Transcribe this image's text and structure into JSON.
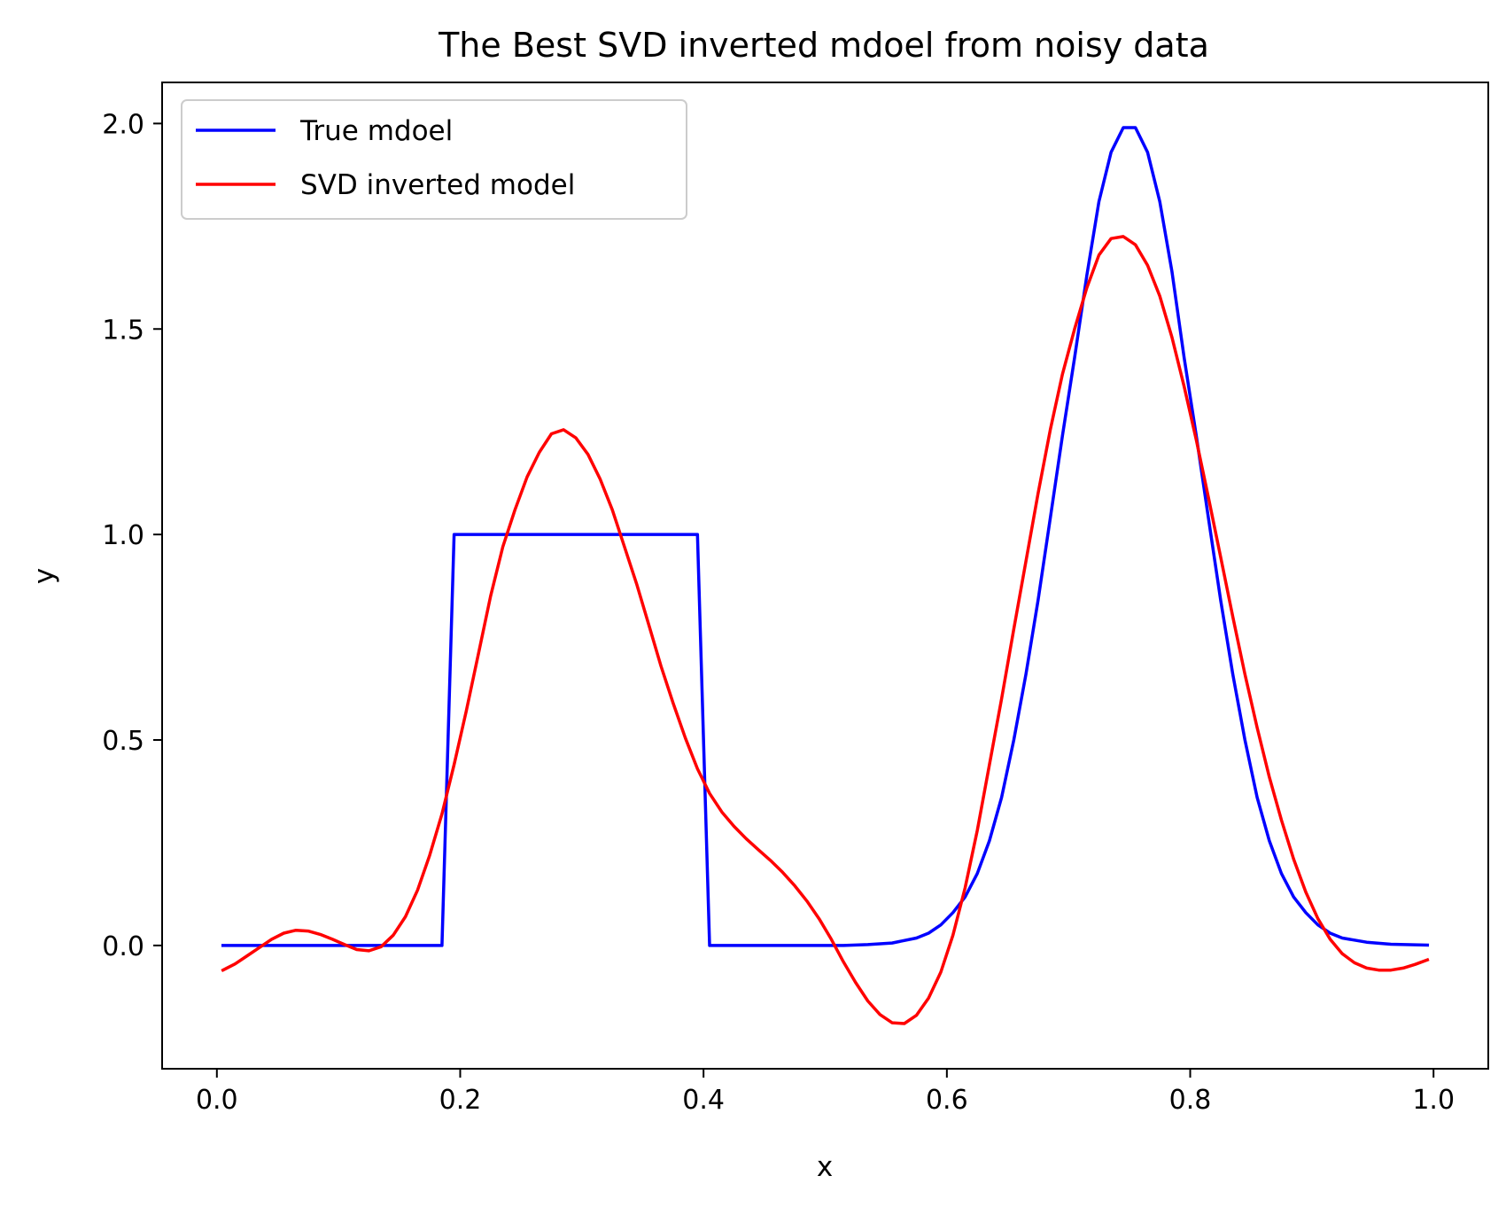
{
  "chart_data": {
    "type": "line",
    "title": "The Best SVD inverted mdoel from noisy data",
    "xlabel": "x",
    "ylabel": "y",
    "xlim": [
      -0.045,
      1.045
    ],
    "ylim": [
      -0.3,
      2.1
    ],
    "xticks": [
      0.0,
      0.2,
      0.4,
      0.6,
      0.8,
      1.0
    ],
    "xtick_labels": [
      "0.0",
      "0.2",
      "0.4",
      "0.6",
      "0.8",
      "1.0"
    ],
    "yticks": [
      0.0,
      0.5,
      1.0,
      1.5,
      2.0
    ],
    "ytick_labels": [
      "0.0",
      "0.5",
      "1.0",
      "1.5",
      "2.0"
    ],
    "grid": false,
    "legend_position": "top-left",
    "series": [
      {
        "name": "True mdoel",
        "color": "#0000ff",
        "points": [
          [
            0.005,
            0.0
          ],
          [
            0.185,
            0.0
          ],
          [
            0.195,
            1.0
          ],
          [
            0.395,
            1.0
          ],
          [
            0.405,
            0.0
          ],
          [
            0.515,
            0.0
          ],
          [
            0.535,
            0.002
          ],
          [
            0.555,
            0.006
          ],
          [
            0.575,
            0.018
          ],
          [
            0.585,
            0.03
          ],
          [
            0.595,
            0.05
          ],
          [
            0.605,
            0.08
          ],
          [
            0.615,
            0.118
          ],
          [
            0.625,
            0.175
          ],
          [
            0.635,
            0.255
          ],
          [
            0.645,
            0.36
          ],
          [
            0.655,
            0.5
          ],
          [
            0.665,
            0.66
          ],
          [
            0.675,
            0.84
          ],
          [
            0.685,
            1.04
          ],
          [
            0.695,
            1.24
          ],
          [
            0.705,
            1.43
          ],
          [
            0.715,
            1.63
          ],
          [
            0.725,
            1.81
          ],
          [
            0.735,
            1.93
          ],
          [
            0.745,
            1.99
          ],
          [
            0.755,
            1.99
          ],
          [
            0.765,
            1.93
          ],
          [
            0.775,
            1.81
          ],
          [
            0.785,
            1.64
          ],
          [
            0.795,
            1.43
          ],
          [
            0.805,
            1.24
          ],
          [
            0.815,
            1.04
          ],
          [
            0.825,
            0.84
          ],
          [
            0.835,
            0.66
          ],
          [
            0.845,
            0.5
          ],
          [
            0.855,
            0.36
          ],
          [
            0.865,
            0.255
          ],
          [
            0.875,
            0.175
          ],
          [
            0.885,
            0.118
          ],
          [
            0.895,
            0.08
          ],
          [
            0.905,
            0.05
          ],
          [
            0.915,
            0.03
          ],
          [
            0.925,
            0.018
          ],
          [
            0.945,
            0.008
          ],
          [
            0.965,
            0.003
          ],
          [
            0.995,
            0.001
          ]
        ]
      },
      {
        "name": "SVD inverted model",
        "color": "#ff0000",
        "points": [
          [
            0.005,
            -0.06
          ],
          [
            0.015,
            -0.045
          ],
          [
            0.025,
            -0.025
          ],
          [
            0.035,
            -0.005
          ],
          [
            0.045,
            0.015
          ],
          [
            0.055,
            0.03
          ],
          [
            0.065,
            0.037
          ],
          [
            0.075,
            0.035
          ],
          [
            0.085,
            0.027
          ],
          [
            0.095,
            0.015
          ],
          [
            0.105,
            0.002
          ],
          [
            0.115,
            -0.01
          ],
          [
            0.125,
            -0.013
          ],
          [
            0.135,
            -0.003
          ],
          [
            0.145,
            0.025
          ],
          [
            0.155,
            0.07
          ],
          [
            0.165,
            0.135
          ],
          [
            0.175,
            0.22
          ],
          [
            0.185,
            0.32
          ],
          [
            0.195,
            0.44
          ],
          [
            0.205,
            0.57
          ],
          [
            0.215,
            0.71
          ],
          [
            0.225,
            0.85
          ],
          [
            0.235,
            0.97
          ],
          [
            0.245,
            1.06
          ],
          [
            0.255,
            1.14
          ],
          [
            0.265,
            1.2
          ],
          [
            0.275,
            1.245
          ],
          [
            0.285,
            1.255
          ],
          [
            0.295,
            1.235
          ],
          [
            0.305,
            1.195
          ],
          [
            0.315,
            1.135
          ],
          [
            0.325,
            1.06
          ],
          [
            0.335,
            0.97
          ],
          [
            0.345,
            0.88
          ],
          [
            0.355,
            0.78
          ],
          [
            0.365,
            0.68
          ],
          [
            0.375,
            0.59
          ],
          [
            0.385,
            0.505
          ],
          [
            0.395,
            0.43
          ],
          [
            0.405,
            0.37
          ],
          [
            0.415,
            0.325
          ],
          [
            0.425,
            0.29
          ],
          [
            0.435,
            0.26
          ],
          [
            0.445,
            0.233
          ],
          [
            0.455,
            0.207
          ],
          [
            0.465,
            0.178
          ],
          [
            0.475,
            0.145
          ],
          [
            0.485,
            0.108
          ],
          [
            0.495,
            0.065
          ],
          [
            0.505,
            0.015
          ],
          [
            0.515,
            -0.04
          ],
          [
            0.525,
            -0.09
          ],
          [
            0.535,
            -0.135
          ],
          [
            0.545,
            -0.168
          ],
          [
            0.555,
            -0.188
          ],
          [
            0.565,
            -0.19
          ],
          [
            0.575,
            -0.17
          ],
          [
            0.585,
            -0.128
          ],
          [
            0.595,
            -0.065
          ],
          [
            0.605,
            0.025
          ],
          [
            0.615,
            0.14
          ],
          [
            0.625,
            0.28
          ],
          [
            0.635,
            0.44
          ],
          [
            0.645,
            0.6
          ],
          [
            0.655,
            0.77
          ],
          [
            0.665,
            0.935
          ],
          [
            0.675,
            1.1
          ],
          [
            0.685,
            1.255
          ],
          [
            0.695,
            1.39
          ],
          [
            0.705,
            1.5
          ],
          [
            0.715,
            1.6
          ],
          [
            0.725,
            1.68
          ],
          [
            0.735,
            1.72
          ],
          [
            0.745,
            1.725
          ],
          [
            0.755,
            1.705
          ],
          [
            0.765,
            1.655
          ],
          [
            0.775,
            1.58
          ],
          [
            0.785,
            1.48
          ],
          [
            0.795,
            1.36
          ],
          [
            0.805,
            1.23
          ],
          [
            0.815,
            1.09
          ],
          [
            0.825,
            0.945
          ],
          [
            0.835,
            0.8
          ],
          [
            0.845,
            0.66
          ],
          [
            0.855,
            0.53
          ],
          [
            0.865,
            0.41
          ],
          [
            0.875,
            0.305
          ],
          [
            0.885,
            0.21
          ],
          [
            0.895,
            0.13
          ],
          [
            0.905,
            0.065
          ],
          [
            0.915,
            0.015
          ],
          [
            0.925,
            -0.02
          ],
          [
            0.935,
            -0.042
          ],
          [
            0.945,
            -0.055
          ],
          [
            0.955,
            -0.06
          ],
          [
            0.965,
            -0.06
          ],
          [
            0.975,
            -0.055
          ],
          [
            0.985,
            -0.046
          ],
          [
            0.995,
            -0.035
          ]
        ]
      }
    ]
  }
}
